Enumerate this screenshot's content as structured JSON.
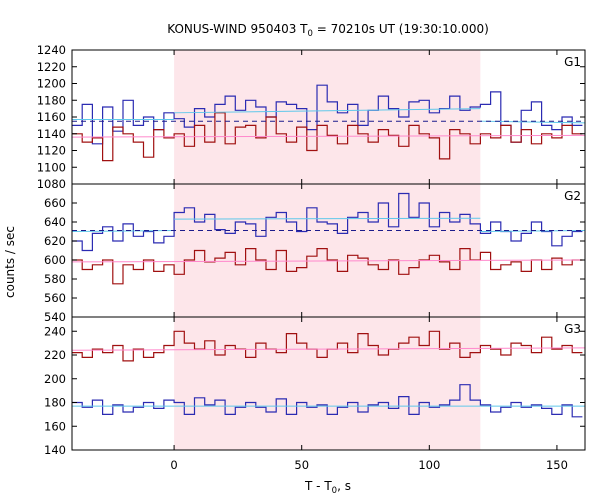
{
  "chart_data": {
    "type": "line",
    "title": "KONUS-WIND 950403 T",
    "title_sub": "0",
    "title_rest": " = 70210s UT (19:30:10.000)",
    "xlabel": "T - T",
    "xlabel_sub": "0",
    "xlabel_rest": ", s",
    "ylabel": "counts / sec",
    "xlim": [
      -40,
      161
    ],
    "xticks": [
      0,
      50,
      100,
      150
    ],
    "grid": false,
    "highlight_interval": [
      0,
      120
    ],
    "colors": {
      "blue": "#2b2bb2",
      "red": "#a01010",
      "blue_dashed": "#1c1c8c",
      "cyan_fit": "#5fc8ea",
      "pink_fit": "#ff88cc",
      "shade": "#fde6ea"
    },
    "bin_edges": [
      -40,
      -36,
      -32,
      -28,
      -24,
      -20,
      -16,
      -12,
      -8,
      -4,
      0,
      4,
      8,
      12,
      16,
      20,
      24,
      28,
      32,
      36,
      40,
      44,
      48,
      52,
      56,
      60,
      64,
      68,
      72,
      76,
      80,
      84,
      88,
      92,
      96,
      100,
      104,
      108,
      112,
      116,
      120,
      124,
      128,
      132,
      136,
      140,
      144,
      148,
      152,
      156,
      160
    ],
    "panels": [
      {
        "label": "G1",
        "ylim": [
          1080,
          1240
        ],
        "yticks": [
          1080,
          1100,
          1120,
          1140,
          1160,
          1180,
          1200,
          1220,
          1240
        ],
        "series": [
          {
            "color_key": "blue",
            "values": [
              1150,
              1175,
              1128,
              1172,
              1143,
              1180,
              1150,
              1160,
              1145,
              1165,
              1158,
              1148,
              1170,
              1160,
              1175,
              1185,
              1168,
              1180,
              1172,
              1160,
              1178,
              1175,
              1170,
              1145,
              1198,
              1178,
              1165,
              1175,
              1150,
              1168,
              1185,
              1170,
              1160,
              1178,
              1180,
              1165,
              1170,
              1185,
              1168,
              1172,
              1175,
              1190,
              1150,
              1130,
              1168,
              1178,
              1150,
              1145,
              1160,
              1150
            ]
          },
          {
            "color_key": "red",
            "values": [
              1140,
              1130,
              1135,
              1108,
              1148,
              1140,
              1130,
              1112,
              1145,
              1135,
              1140,
              1125,
              1150,
              1130,
              1165,
              1128,
              1148,
              1150,
              1135,
              1160,
              1140,
              1130,
              1148,
              1120,
              1150,
              1138,
              1128,
              1150,
              1140,
              1130,
              1145,
              1138,
              1125,
              1150,
              1140,
              1135,
              1110,
              1145,
              1140,
              1128,
              1140,
              1135,
              1150,
              1130,
              1145,
              1128,
              1140,
              1135,
              1150,
              1140
            ]
          }
        ],
        "fits": [
          {
            "color_key": "cyan_fit",
            "dashed": false,
            "points": [
              [
                -40,
                1157
              ],
              [
                0,
                1157
              ]
            ]
          },
          {
            "color_key": "cyan_fit",
            "dashed": false,
            "points": [
              [
                0,
                1165
              ],
              [
                120,
                1170
              ]
            ]
          },
          {
            "color_key": "cyan_fit",
            "dashed": false,
            "points": [
              [
                120,
                1155
              ],
              [
                161,
                1153
              ]
            ]
          },
          {
            "color_key": "blue_dashed",
            "dashed": true,
            "points": [
              [
                -40,
                1155
              ],
              [
                161,
                1155
              ]
            ]
          },
          {
            "color_key": "pink_fit",
            "dashed": false,
            "points": [
              [
                -40,
                1136
              ],
              [
                161,
                1138
              ]
            ]
          }
        ]
      },
      {
        "label": "G2",
        "ylim": [
          540,
          680
        ],
        "yticks": [
          540,
          560,
          580,
          600,
          620,
          640,
          660,
          680
        ],
        "series": [
          {
            "color_key": "blue",
            "values": [
              620,
              610,
              628,
              635,
              620,
              638,
              625,
              630,
              618,
              625,
              650,
              655,
              640,
              648,
              632,
              628,
              640,
              638,
              625,
              645,
              650,
              640,
              630,
              655,
              640,
              638,
              628,
              645,
              650,
              640,
              660,
              635,
              670,
              645,
              660,
              635,
              650,
              640,
              648,
              638,
              628,
              640,
              630,
              620,
              628,
              640,
              630,
              615,
              625,
              630
            ]
          },
          {
            "color_key": "red",
            "values": [
              600,
              590,
              595,
              600,
              575,
              595,
              590,
              600,
              588,
              595,
              585,
              600,
              610,
              598,
              602,
              608,
              595,
              612,
              600,
              590,
              610,
              588,
              592,
              604,
              612,
              600,
              588,
              605,
              602,
              595,
              590,
              600,
              585,
              592,
              600,
              605,
              598,
              590,
              612,
              600,
              608,
              590,
              595,
              598,
              588,
              600,
              590,
              602,
              595,
              600
            ]
          }
        ],
        "fits": [
          {
            "color_key": "cyan_fit",
            "dashed": false,
            "points": [
              [
                -40,
                630
              ],
              [
                0,
                631
              ]
            ]
          },
          {
            "color_key": "cyan_fit",
            "dashed": false,
            "points": [
              [
                0,
                643
              ],
              [
                120,
                644
              ]
            ]
          },
          {
            "color_key": "cyan_fit",
            "dashed": false,
            "points": [
              [
                120,
                630
              ],
              [
                161,
                631
              ]
            ]
          },
          {
            "color_key": "blue_dashed",
            "dashed": true,
            "points": [
              [
                -40,
                631
              ],
              [
                161,
                631
              ]
            ]
          },
          {
            "color_key": "pink_fit",
            "dashed": false,
            "points": [
              [
                -40,
                598
              ],
              [
                161,
                600
              ]
            ]
          }
        ]
      },
      {
        "label": "G3",
        "ylim": [
          140,
          252
        ],
        "yticks": [
          140,
          160,
          180,
          200,
          220,
          240
        ],
        "series": [
          {
            "color_key": "red",
            "values": [
              222,
              218,
              225,
              222,
              228,
              215,
              225,
              218,
              222,
              228,
              240,
              230,
              225,
              232,
              220,
              228,
              225,
              218,
              230,
              225,
              222,
              238,
              230,
              225,
              218,
              225,
              230,
              222,
              238,
              228,
              220,
              225,
              230,
              235,
              228,
              240,
              225,
              230,
              218,
              222,
              228,
              225,
              220,
              230,
              228,
              222,
              235,
              225,
              228,
              222
            ]
          },
          {
            "color_key": "blue",
            "values": [
              180,
              176,
              182,
              170,
              178,
              172,
              176,
              180,
              175,
              182,
              180,
              170,
              184,
              178,
              182,
              170,
              176,
              180,
              176,
              172,
              183,
              170,
              180,
              176,
              178,
              170,
              176,
              180,
              172,
              178,
              180,
              175,
              185,
              170,
              180,
              176,
              178,
              182,
              195,
              182,
              178,
              172,
              176,
              180,
              176,
              178,
              175,
              170,
              178,
              168
            ]
          }
        ],
        "fits": [
          {
            "color_key": "cyan_fit",
            "dashed": false,
            "points": [
              [
                -40,
                177
              ],
              [
                0,
                177
              ]
            ]
          },
          {
            "color_key": "cyan_fit",
            "dashed": false,
            "points": [
              [
                0,
                177
              ],
              [
                120,
                177
              ]
            ]
          },
          {
            "color_key": "cyan_fit",
            "dashed": false,
            "points": [
              [
                120,
                177
              ],
              [
                161,
                177
              ]
            ]
          },
          {
            "color_key": "pink_fit",
            "dashed": false,
            "points": [
              [
                -40,
                224
              ],
              [
                161,
                226
              ]
            ]
          }
        ]
      }
    ]
  }
}
